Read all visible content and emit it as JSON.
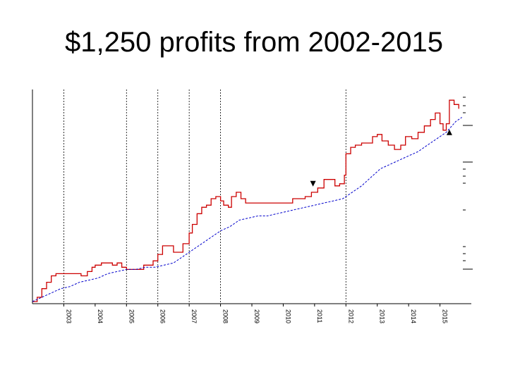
{
  "slide": {
    "title": "$1,250 profits from 2002-2015"
  },
  "chart_data": {
    "type": "line",
    "title": "",
    "xlabel": "",
    "ylabel": "",
    "grid": "vertical dotted lines at year boundaries",
    "x_ticks": [
      "2003",
      "2004",
      "2005",
      "2006",
      "2007",
      "2008",
      "2009",
      "2010",
      "2011",
      "2012",
      "2013",
      "2014",
      "2015"
    ],
    "xlim": [
      2002.0,
      2016.0
    ],
    "ylim": [
      0,
      100
    ],
    "colors": {
      "equity": "#cc0000",
      "trend": "#0000cc",
      "axis": "#000000",
      "grid": "#000000"
    },
    "series": [
      {
        "role": "equity",
        "color": "#cc0000",
        "points": [
          [
            2002.0,
            1
          ],
          [
            2002.15,
            3
          ],
          [
            2002.3,
            7
          ],
          [
            2002.45,
            10
          ],
          [
            2002.6,
            13
          ],
          [
            2002.75,
            14
          ],
          [
            2002.9,
            14
          ],
          [
            2003.05,
            14
          ],
          [
            2003.3,
            14
          ],
          [
            2003.55,
            13
          ],
          [
            2003.75,
            15
          ],
          [
            2003.9,
            17
          ],
          [
            2004.0,
            18
          ],
          [
            2004.2,
            19
          ],
          [
            2004.4,
            19
          ],
          [
            2004.55,
            18
          ],
          [
            2004.7,
            19
          ],
          [
            2004.85,
            17
          ],
          [
            2005.0,
            16
          ],
          [
            2005.2,
            16
          ],
          [
            2005.4,
            16
          ],
          [
            2005.55,
            18
          ],
          [
            2005.7,
            18
          ],
          [
            2005.85,
            20
          ],
          [
            2006.0,
            23
          ],
          [
            2006.15,
            27
          ],
          [
            2006.35,
            27
          ],
          [
            2006.5,
            24
          ],
          [
            2006.65,
            24
          ],
          [
            2006.8,
            28
          ],
          [
            2007.0,
            33
          ],
          [
            2007.1,
            37
          ],
          [
            2007.25,
            42
          ],
          [
            2007.4,
            45
          ],
          [
            2007.55,
            46
          ],
          [
            2007.7,
            49
          ],
          [
            2007.85,
            50
          ],
          [
            2008.0,
            48
          ],
          [
            2008.1,
            46
          ],
          [
            2008.25,
            45
          ],
          [
            2008.35,
            50
          ],
          [
            2008.5,
            52
          ],
          [
            2008.65,
            49
          ],
          [
            2008.8,
            47
          ],
          [
            2009.0,
            47
          ],
          [
            2009.3,
            47
          ],
          [
            2009.6,
            47
          ],
          [
            2009.9,
            47
          ],
          [
            2010.1,
            47
          ],
          [
            2010.3,
            49
          ],
          [
            2010.5,
            49
          ],
          [
            2010.7,
            50
          ],
          [
            2010.9,
            52
          ],
          [
            2011.1,
            54
          ],
          [
            2011.3,
            58
          ],
          [
            2011.5,
            58
          ],
          [
            2011.65,
            55
          ],
          [
            2011.8,
            56
          ],
          [
            2011.95,
            60
          ],
          [
            2012.0,
            70
          ],
          [
            2012.15,
            73
          ],
          [
            2012.3,
            74
          ],
          [
            2012.5,
            75
          ],
          [
            2012.7,
            75
          ],
          [
            2012.85,
            78
          ],
          [
            2013.0,
            79
          ],
          [
            2013.15,
            76
          ],
          [
            2013.35,
            74
          ],
          [
            2013.55,
            72
          ],
          [
            2013.75,
            74
          ],
          [
            2013.9,
            78
          ],
          [
            2014.1,
            77
          ],
          [
            2014.3,
            80
          ],
          [
            2014.5,
            83
          ],
          [
            2014.7,
            86
          ],
          [
            2014.85,
            89
          ],
          [
            2015.0,
            84
          ],
          [
            2015.1,
            81
          ],
          [
            2015.2,
            84
          ],
          [
            2015.3,
            95
          ],
          [
            2015.45,
            93
          ],
          [
            2015.6,
            91
          ]
        ]
      },
      {
        "role": "trend",
        "color": "#0000cc",
        "points": [
          [
            2002.0,
            1
          ],
          [
            2002.3,
            3
          ],
          [
            2002.6,
            5
          ],
          [
            2002.9,
            7
          ],
          [
            2003.2,
            8
          ],
          [
            2003.5,
            10
          ],
          [
            2003.8,
            11
          ],
          [
            2004.1,
            12
          ],
          [
            2004.4,
            14
          ],
          [
            2004.7,
            15
          ],
          [
            2005.0,
            16
          ],
          [
            2005.3,
            16
          ],
          [
            2005.6,
            17
          ],
          [
            2005.9,
            17
          ],
          [
            2006.2,
            18
          ],
          [
            2006.5,
            19
          ],
          [
            2006.8,
            22
          ],
          [
            2007.1,
            25
          ],
          [
            2007.4,
            28
          ],
          [
            2007.7,
            31
          ],
          [
            2008.0,
            34
          ],
          [
            2008.3,
            36
          ],
          [
            2008.6,
            39
          ],
          [
            2008.9,
            40
          ],
          [
            2009.2,
            41
          ],
          [
            2009.5,
            41
          ],
          [
            2009.8,
            42
          ],
          [
            2010.1,
            43
          ],
          [
            2010.4,
            44
          ],
          [
            2010.7,
            45
          ],
          [
            2011.0,
            46
          ],
          [
            2011.3,
            47
          ],
          [
            2011.6,
            48
          ],
          [
            2011.9,
            49
          ],
          [
            2012.2,
            52
          ],
          [
            2012.5,
            55
          ],
          [
            2012.8,
            59
          ],
          [
            2013.1,
            63
          ],
          [
            2013.4,
            65
          ],
          [
            2013.7,
            67
          ],
          [
            2014.0,
            69
          ],
          [
            2014.3,
            71
          ],
          [
            2014.6,
            74
          ],
          [
            2014.9,
            77
          ],
          [
            2015.2,
            80
          ],
          [
            2015.5,
            85
          ],
          [
            2015.7,
            87
          ]
        ]
      }
    ],
    "markers": [
      {
        "shape": "triangle-down",
        "x": 2010.95,
        "y": 56
      },
      {
        "shape": "triangle-up",
        "x": 2015.3,
        "y": 80
      }
    ]
  }
}
